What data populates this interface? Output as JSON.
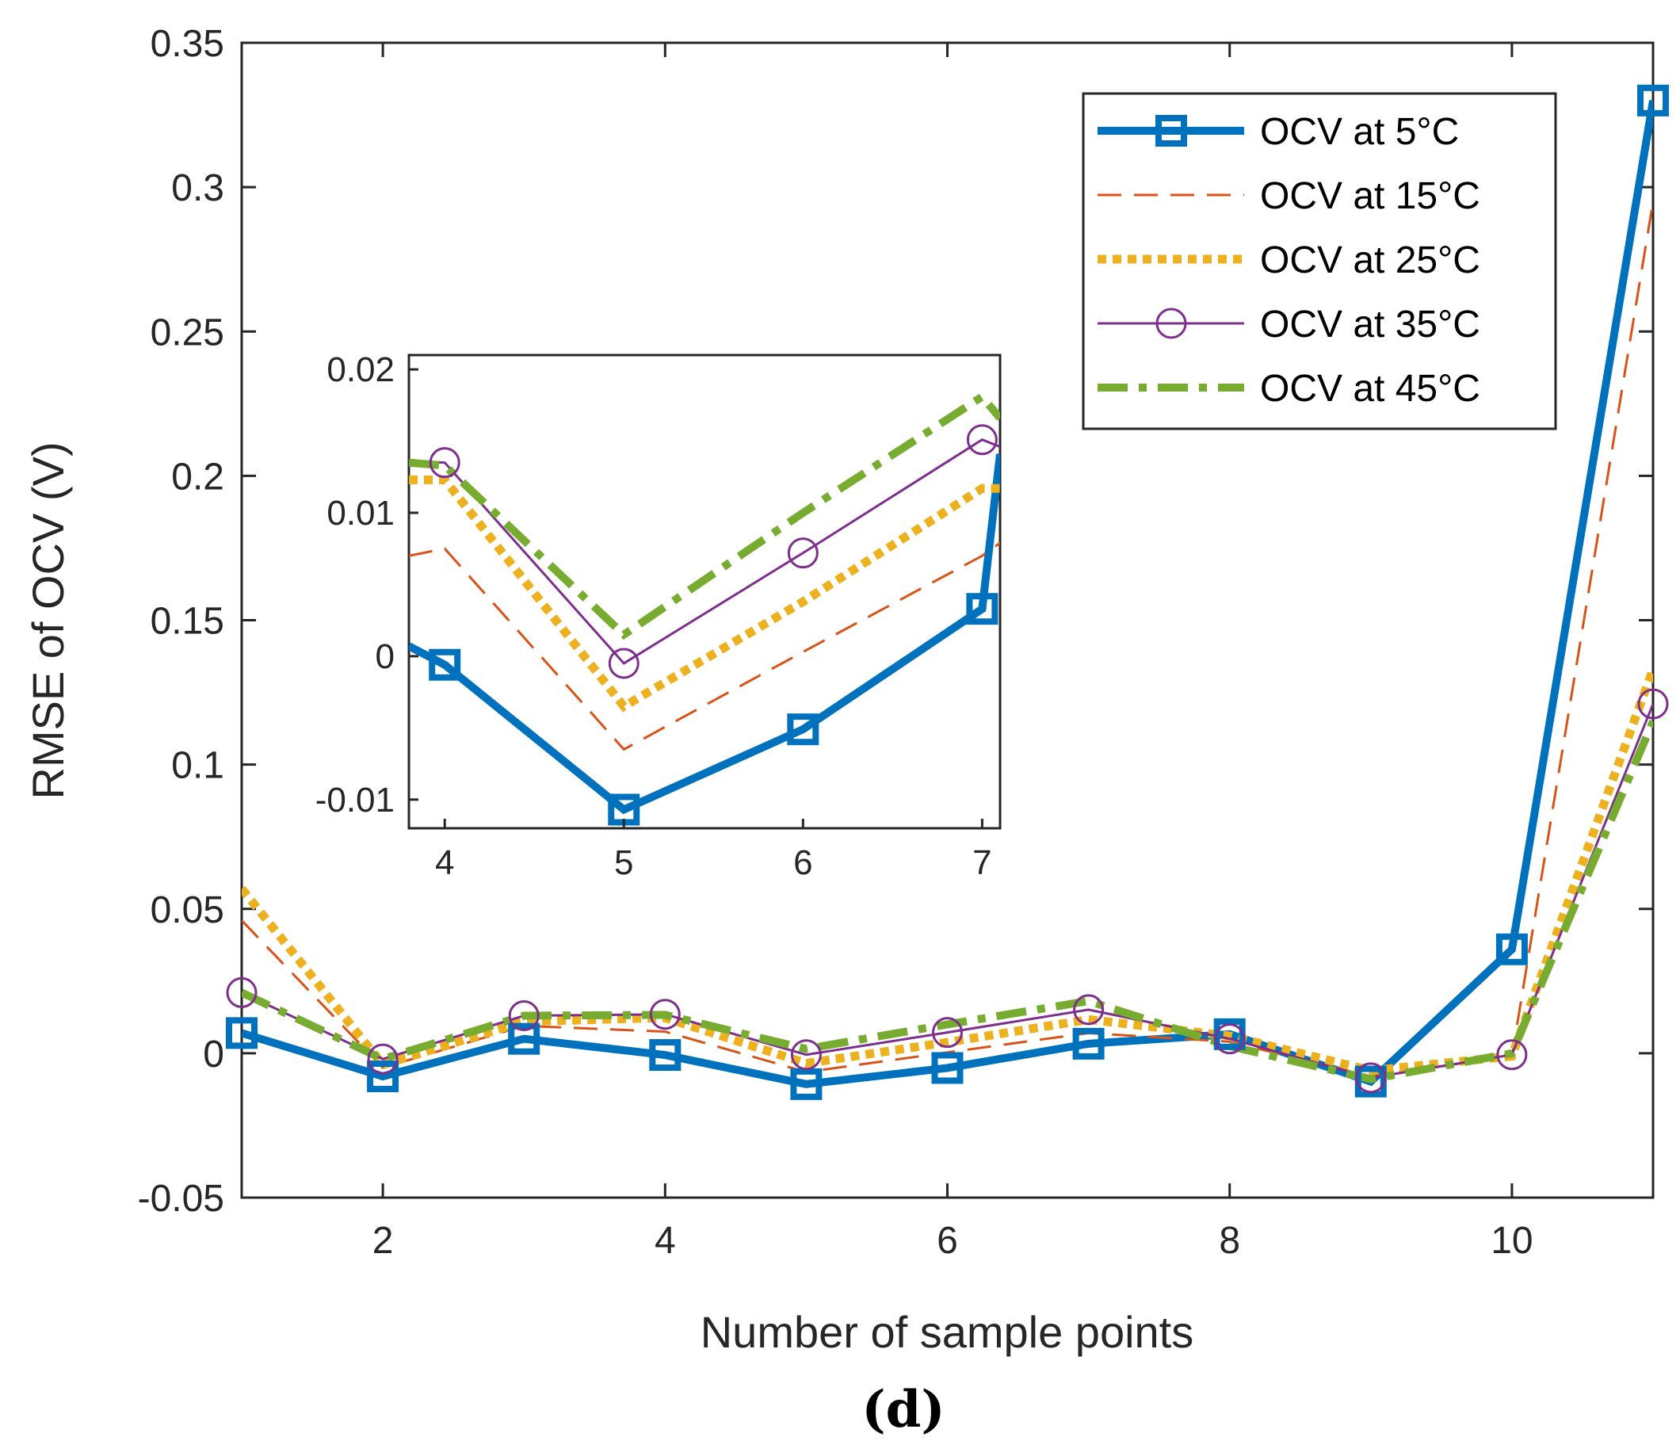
{
  "chart_data": [
    {
      "type": "line",
      "title": "",
      "xlabel": "Number of sample points",
      "ylabel": "RMSE of OCV (V)",
      "caption": "(d)",
      "xlim": [
        1,
        11
      ],
      "ylim": [
        -0.05,
        0.35
      ],
      "xticks": [
        "2",
        "4",
        "6",
        "8",
        "10"
      ],
      "yticks": [
        "-0.05",
        "0",
        "0.05",
        "0.1",
        "0.15",
        "0.2",
        "0.25",
        "0.3",
        "0.35"
      ],
      "grid": false,
      "legend_position": "top-right",
      "x": [
        1,
        2,
        3,
        4,
        5,
        6,
        7,
        8,
        9,
        10,
        11
      ],
      "series": [
        {
          "name": "OCV at 5°C",
          "color": "#0072BD",
          "style": "solid-thick",
          "marker": "square",
          "values": [
            0.007,
            -0.008,
            0.005,
            -0.0006,
            -0.0107,
            -0.0051,
            0.0033,
            0.0066,
            -0.0098,
            0.036,
            0.33
          ]
        },
        {
          "name": "OCV at 15°C",
          "color": "#D95319",
          "style": "dashed",
          "marker": "none",
          "values": [
            0.046,
            -0.005,
            0.0095,
            0.0075,
            -0.0065,
            0.0003,
            0.007,
            0.004,
            -0.008,
            -0.001,
            0.295
          ]
        },
        {
          "name": "OCV at 25°C",
          "color": "#EDB120",
          "style": "dotted",
          "marker": "none",
          "values": [
            0.057,
            -0.004,
            0.011,
            0.0123,
            -0.0035,
            0.0038,
            0.0117,
            0.006,
            -0.006,
            -0.001,
            0.133
          ]
        },
        {
          "name": "OCV at 35°C",
          "color": "#7E2F8E",
          "style": "solid-thin",
          "marker": "circle",
          "values": [
            0.021,
            -0.002,
            0.013,
            0.0135,
            -0.0005,
            0.0072,
            0.0151,
            0.005,
            -0.0085,
            -0.0005,
            0.121
          ]
        },
        {
          "name": "OCV at 45°C",
          "color": "#77AC30",
          "style": "dash-dot",
          "marker": "none",
          "values": [
            0.021,
            -0.002,
            0.013,
            0.0133,
            0.0015,
            0.01,
            0.0181,
            0.0025,
            -0.009,
            0.0,
            0.115
          ]
        }
      ]
    },
    {
      "type": "line",
      "role": "inset",
      "title": "",
      "xlim": [
        3.8,
        7.1
      ],
      "ylim": [
        -0.012,
        0.021
      ],
      "xticks": [
        "4",
        "5",
        "6",
        "7"
      ],
      "yticks": [
        "-0.01",
        "0",
        "0.01",
        "0.02"
      ],
      "x": [
        4,
        5,
        6,
        7
      ],
      "edge_values": {
        "left": [
          0.0007,
          0.007,
          0.0123,
          0.0136,
          0.0135
        ],
        "right": [
          0.0141,
          0.0079,
          0.0117,
          0.0146,
          0.0166
        ]
      }
    }
  ]
}
